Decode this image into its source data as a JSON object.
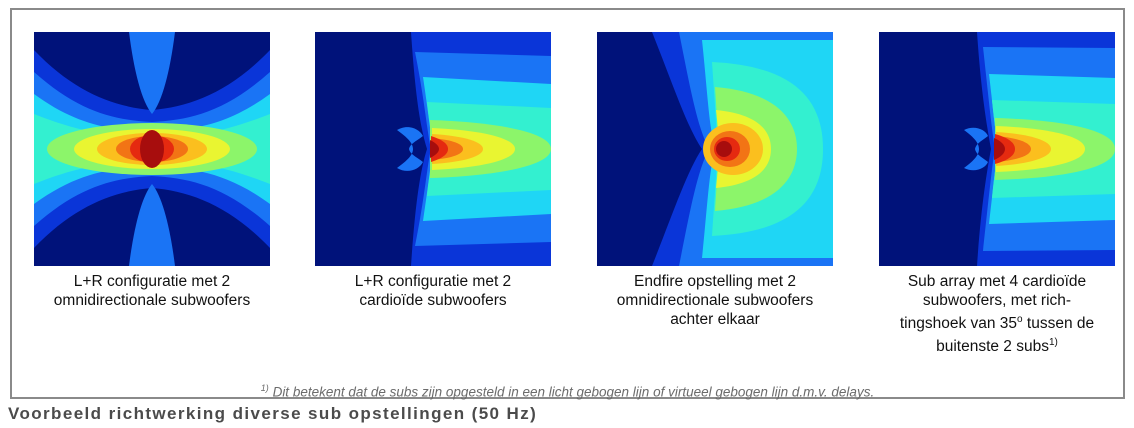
{
  "colors": {
    "frame_border": "#8a8a8a",
    "caption_text": "#111111",
    "footnote_text": "#6b6b6b",
    "title_text": "#4b4b4b"
  },
  "panels": [
    {
      "name": "lr-omni",
      "caption_lines": [
        "L+R configuratie met 2",
        "omnidirectionale subwoofers"
      ]
    },
    {
      "name": "lr-cardioid",
      "caption_lines": [
        "L+R configuratie met 2",
        "cardioïde subwoofers"
      ]
    },
    {
      "name": "endfire",
      "caption_lines": [
        "Endfire opstelling met 2",
        "omnidirectionale subwoofers",
        "achter elkaar"
      ]
    },
    {
      "name": "sub-array",
      "caption_lines": [
        "Sub array met 4 cardioïde",
        "subwoofers, met rich-",
        "tingshoek van 35",
        "o",
        " tussen de",
        "buitenste 2 subs",
        "1)"
      ]
    }
  ],
  "footnote": {
    "marker": "1)",
    "text": " Dit betekent dat de subs zijn opgesteld in een licht gebogen lijn of virtueel gebogen lijn d.m.v. delays."
  },
  "title": "Voorbeeld richtwerking diverse sub opstellingen (50 Hz)"
}
